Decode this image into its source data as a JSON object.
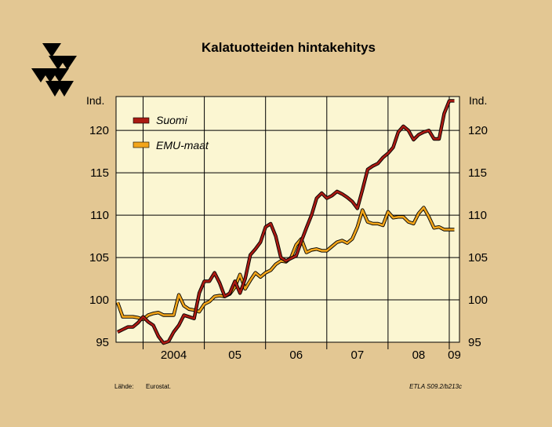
{
  "chart_data": {
    "type": "line",
    "title": "Kalatuotteiden hintakehitys",
    "ylabel_left": "Ind.",
    "ylabel_right": "Ind.",
    "ylim": [
      95,
      124
    ],
    "yticks": [
      95,
      100,
      105,
      110,
      115,
      120
    ],
    "x_start": "2003-08",
    "x_end": "2009-03",
    "xticks": [
      {
        "label": "2004",
        "start": "2004-01",
        "end": "2005-01"
      },
      {
        "label": "05",
        "start": "2005-01",
        "end": "2006-01"
      },
      {
        "label": "06",
        "start": "2006-01",
        "end": "2007-01"
      },
      {
        "label": "07",
        "start": "2007-01",
        "end": "2008-01"
      },
      {
        "label": "08",
        "start": "2008-01",
        "end": "2009-01"
      },
      {
        "label": "09",
        "start": "2009-01",
        "end": "2009-03"
      }
    ],
    "grid": true,
    "legend_position": "top-left",
    "series": [
      {
        "name": "Suomi",
        "color": "#aa1a12",
        "x": [
          "2003-08",
          "2003-09",
          "2003-10",
          "2003-11",
          "2003-12",
          "2004-01",
          "2004-02",
          "2004-03",
          "2004-04",
          "2004-05",
          "2004-06",
          "2004-07",
          "2004-08",
          "2004-09",
          "2004-10",
          "2004-11",
          "2004-12",
          "2005-01",
          "2005-02",
          "2005-03",
          "2005-04",
          "2005-05",
          "2005-06",
          "2005-07",
          "2005-08",
          "2005-09",
          "2005-10",
          "2005-11",
          "2005-12",
          "2006-01",
          "2006-02",
          "2006-03",
          "2006-04",
          "2006-05",
          "2006-06",
          "2006-07",
          "2006-08",
          "2006-09",
          "2006-10",
          "2006-11",
          "2006-12",
          "2007-01",
          "2007-02",
          "2007-03",
          "2007-04",
          "2007-05",
          "2007-06",
          "2007-07",
          "2007-08",
          "2007-09",
          "2007-10",
          "2007-11",
          "2007-12",
          "2008-01",
          "2008-02",
          "2008-03",
          "2008-04",
          "2008-05",
          "2008-06",
          "2008-07",
          "2008-08",
          "2008-09",
          "2008-10",
          "2008-11",
          "2008-12",
          "2009-01",
          "2009-02"
        ],
        "values": [
          96.2,
          96.5,
          96.8,
          96.8,
          97.3,
          98.0,
          97.4,
          97.0,
          95.7,
          94.9,
          95.1,
          96.2,
          97.0,
          98.2,
          98.0,
          97.8,
          100.8,
          102.2,
          102.2,
          103.2,
          102.0,
          100.4,
          100.8,
          102.2,
          100.8,
          102.5,
          105.3,
          106.0,
          106.8,
          108.6,
          109.0,
          107.5,
          105.0,
          104.6,
          104.9,
          105.2,
          106.9,
          108.5,
          110.0,
          112.0,
          112.6,
          112.0,
          112.3,
          112.8,
          112.5,
          112.1,
          111.6,
          110.8,
          113.0,
          115.4,
          115.8,
          116.1,
          116.8,
          117.3,
          118.0,
          119.8,
          120.5,
          120.0,
          118.9,
          119.5,
          119.8,
          120.0,
          119.0,
          119.0,
          122.0,
          123.5,
          123.5
        ]
      },
      {
        "name": "EMU-maat",
        "color": "#f2a51a",
        "x": [
          "2003-08",
          "2003-09",
          "2003-10",
          "2003-11",
          "2003-12",
          "2004-01",
          "2004-02",
          "2004-03",
          "2004-04",
          "2004-05",
          "2004-06",
          "2004-07",
          "2004-08",
          "2004-09",
          "2004-10",
          "2004-11",
          "2004-12",
          "2005-01",
          "2005-02",
          "2005-03",
          "2005-04",
          "2005-05",
          "2005-06",
          "2005-07",
          "2005-08",
          "2005-09",
          "2005-10",
          "2005-11",
          "2005-12",
          "2006-01",
          "2006-02",
          "2006-03",
          "2006-04",
          "2006-05",
          "2006-06",
          "2006-07",
          "2006-08",
          "2006-09",
          "2006-10",
          "2006-11",
          "2006-12",
          "2007-01",
          "2007-02",
          "2007-03",
          "2007-04",
          "2007-05",
          "2007-06",
          "2007-07",
          "2007-08",
          "2007-09",
          "2007-10",
          "2007-11",
          "2007-12",
          "2008-01",
          "2008-02",
          "2008-03",
          "2008-04",
          "2008-05",
          "2008-06",
          "2008-07",
          "2008-08",
          "2008-09",
          "2008-10",
          "2008-11",
          "2008-12",
          "2009-01",
          "2009-02"
        ],
        "values": [
          99.7,
          98.0,
          98.0,
          98.0,
          97.9,
          97.7,
          98.2,
          98.4,
          98.5,
          98.2,
          98.2,
          98.2,
          100.6,
          99.3,
          98.9,
          98.8,
          98.6,
          99.5,
          99.8,
          100.4,
          100.5,
          100.4,
          100.7,
          101.5,
          103.0,
          101.3,
          102.3,
          103.2,
          102.7,
          103.2,
          103.5,
          104.2,
          104.6,
          104.5,
          105.0,
          106.5,
          107.2,
          105.6,
          105.9,
          106.0,
          105.8,
          105.8,
          106.3,
          106.8,
          107.0,
          106.7,
          107.2,
          108.6,
          110.6,
          109.2,
          109.0,
          109.0,
          108.8,
          110.4,
          109.7,
          109.8,
          109.8,
          109.2,
          109.0,
          110.2,
          110.9,
          109.8,
          108.5,
          108.6,
          108.3,
          108.3,
          108.3
        ]
      }
    ]
  },
  "source": {
    "label": "Lähde:",
    "value": "Eurostat."
  },
  "code": "ETLA S09.2/b213c",
  "colors": {
    "background": "#e3c793",
    "plot_bg": "#fbf6d2",
    "grid": "#000000"
  },
  "logo": "etla-triangles-logo"
}
